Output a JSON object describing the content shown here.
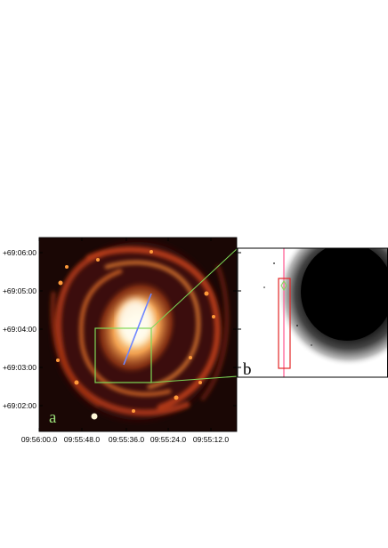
{
  "figure": {
    "panel_a": {
      "label": "a",
      "label_color": "#9be07a",
      "dec_ticks": [
        "+69:06:00",
        "+69:05:00",
        "+69:04:00",
        "+69:03:00",
        "+69:02:00"
      ],
      "ra_ticks": [
        "09:56:00.0",
        "09:55:48.0",
        "09:55:36.0",
        "09:55:24.0",
        "09:55:12.0"
      ],
      "zoom_box_color": "#7ed957",
      "slit_line_color": "#6f86ff"
    },
    "panel_b": {
      "label": "b",
      "label_color": "#000000",
      "slit_box_color": "#e32626",
      "slit_line_color": "#ff6fa0",
      "marker_color": "#7ed957"
    }
  }
}
